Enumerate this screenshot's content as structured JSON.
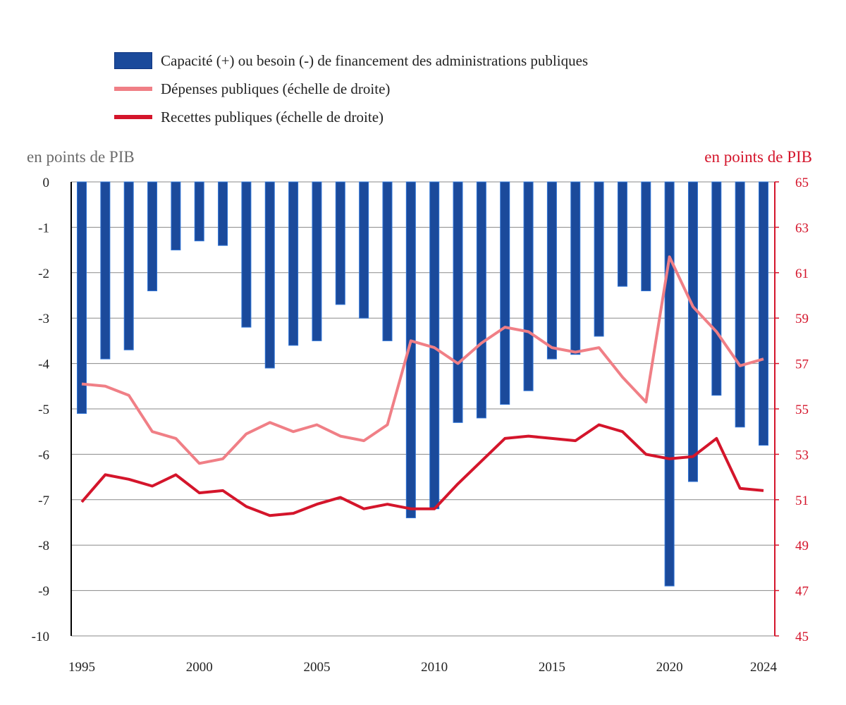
{
  "colors": {
    "bars": "#1b4a9b",
    "bar_edge": "#2f74d6",
    "depenses": "#f07f86",
    "recettes": "#d4152b",
    "grid": "#8a8a8a",
    "right_axis": "#d4152b",
    "left_axis_text": "#222222"
  },
  "legend": {
    "bars_label": "Capacité (+) ou besoin (-) de financement des administrations publiques",
    "depenses_label": "Dépenses publiques (échelle de droite)",
    "recettes_label": "Recettes publiques (échelle de droite)"
  },
  "axes": {
    "left_unit": "en points de PIB",
    "right_unit": "en points de PIB"
  },
  "chart_data": {
    "type": "bar",
    "x": [
      1995,
      1996,
      1997,
      1998,
      1999,
      2000,
      2001,
      2002,
      2003,
      2004,
      2005,
      2006,
      2007,
      2008,
      2009,
      2010,
      2011,
      2012,
      2013,
      2014,
      2015,
      2016,
      2017,
      2018,
      2019,
      2020,
      2021,
      2022,
      2023,
      2024
    ],
    "x_tick_labels": [
      "1995",
      "2000",
      "2005",
      "2010",
      "2015",
      "2020",
      "2024"
    ],
    "series": [
      {
        "name": "Capacité (+) ou besoin (-) de financement des administrations publiques",
        "axis": "left",
        "type": "bar",
        "values": [
          -5.1,
          -3.9,
          -3.7,
          -2.4,
          -1.5,
          -1.3,
          -1.4,
          -3.2,
          -4.1,
          -3.6,
          -3.5,
          -2.7,
          -3.0,
          -3.5,
          -7.4,
          -7.2,
          -5.3,
          -5.2,
          -4.9,
          -4.6,
          -3.9,
          -3.8,
          -3.4,
          -2.3,
          -2.4,
          -8.9,
          -6.6,
          -4.7,
          -5.4,
          -5.8
        ]
      },
      {
        "name": "Dépenses publiques (échelle de droite)",
        "axis": "right",
        "type": "line",
        "values": [
          56.1,
          56.0,
          55.6,
          54.0,
          53.7,
          52.6,
          52.8,
          53.9,
          54.4,
          54.0,
          54.3,
          53.8,
          53.6,
          54.3,
          58.0,
          57.7,
          57.0,
          57.9,
          58.6,
          58.4,
          57.7,
          57.5,
          57.7,
          56.4,
          55.3,
          61.7,
          59.5,
          58.4,
          56.9,
          57.2
        ]
      },
      {
        "name": "Recettes publiques (échelle de droite)",
        "axis": "right",
        "type": "line",
        "values": [
          50.9,
          52.1,
          51.9,
          51.6,
          52.1,
          51.3,
          51.4,
          50.7,
          50.3,
          50.4,
          50.8,
          51.1,
          50.6,
          50.8,
          50.6,
          50.6,
          51.7,
          52.7,
          53.7,
          53.8,
          53.7,
          53.6,
          54.3,
          54.0,
          53.0,
          52.8,
          52.9,
          53.7,
          51.5,
          51.4
        ]
      }
    ],
    "left_ylim": [
      -10,
      0
    ],
    "left_ticks": [
      "0",
      "-1",
      "-2",
      "-3",
      "-4",
      "-5",
      "-6",
      "-7",
      "-8",
      "-9",
      "-10"
    ],
    "right_ylim": [
      45,
      65
    ],
    "right_ticks": [
      "65",
      "63",
      "61",
      "59",
      "57",
      "55",
      "53",
      "51",
      "49",
      "47",
      "45"
    ],
    "grid": true,
    "legend_position": "top-left"
  }
}
